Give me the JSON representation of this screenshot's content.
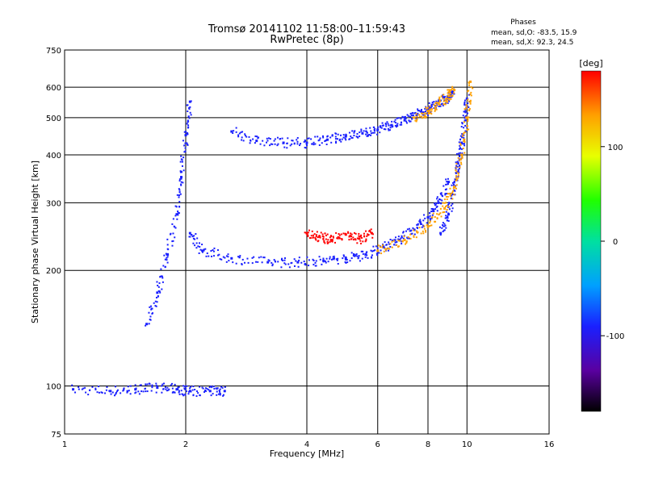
{
  "chart_data": {
    "type": "scatter",
    "title": "Tromsø 20141102 11:58:00–11:59:43",
    "subtitle": "RwPretec (8p)",
    "xlabel": "Frequency [MHz]",
    "ylabel": "Stationary phase Virtual Height [km]",
    "x_scale": "log",
    "y_scale": "log",
    "xlim": [
      1,
      16
    ],
    "ylim": [
      75,
      750
    ],
    "x_ticks": [
      1,
      2,
      4,
      6,
      8,
      10,
      16
    ],
    "x_tick_labels": [
      "1",
      "2",
      "4",
      "6",
      "8",
      "10",
      "16"
    ],
    "y_ticks": [
      75,
      100,
      200,
      300,
      400,
      500,
      600,
      750
    ],
    "y_tick_labels": [
      "75",
      "100",
      "200",
      "300",
      "400",
      "500",
      "600",
      "750"
    ],
    "grid": true,
    "phase_info": {
      "title": "Phases",
      "line_o": "mean, sd,O: -83.5, 15.9",
      "line_x": "mean, sd,X:  92.3, 24.5"
    },
    "colorbar": {
      "label": "[deg]",
      "range": [
        -180,
        180
      ],
      "ticks": [
        100,
        0,
        -100
      ],
      "tick_labels": [
        "100",
        "0",
        "-100"
      ]
    },
    "series": [
      {
        "traces": [
          {
            "x": [
              1.05,
              1.3,
              1.5,
              1.7,
              1.9,
              2.05,
              2.3,
              2.5
            ],
            "y": [
              98,
              97,
              98,
              99,
              98,
              97,
              97,
              97
            ],
            "phase": -100
          },
          {
            "x": [
              1.6,
              1.7,
              1.8,
              1.9,
              1.95,
              2.0,
              2.05
            ],
            "y": [
              145,
              175,
              220,
              280,
              350,
              450,
              550
            ],
            "phase": -105
          },
          {
            "x": [
              2.05,
              2.2,
              2.6,
              3.2,
              3.8,
              4.4,
              5.0,
              5.6,
              6.2,
              6.8,
              7.4,
              8.0,
              8.5,
              9.0
            ],
            "y": [
              250,
              225,
              215,
              210,
              210,
              212,
              215,
              220,
              230,
              240,
              255,
              275,
              300,
              340
            ],
            "phase": -100
          },
          {
            "x": [
              2.6,
              3.0,
              3.5,
              4.0,
              4.5,
              5.0,
              5.5,
              6.0,
              6.5,
              7.0,
              7.5,
              8.0,
              8.5,
              9.0,
              9.2
            ],
            "y": [
              460,
              435,
              430,
              430,
              438,
              447,
              455,
              465,
              478,
              492,
              508,
              526,
              545,
              565,
              580
            ],
            "phase": -90
          },
          {
            "x": [
              8.6,
              9.0,
              9.3,
              9.5,
              9.7,
              9.9,
              10.0
            ],
            "y": [
              250,
              280,
              330,
              380,
              430,
              500,
              560
            ],
            "phase": -95
          },
          {
            "x": [
              6.0,
              7.0,
              8.0,
              8.8,
              9.3,
              9.7,
              10.0,
              10.2
            ],
            "y": [
              225,
              240,
              260,
              290,
              330,
              400,
              500,
              620
            ],
            "phase": 100
          },
          {
            "x": [
              4.0,
              4.3,
              4.6,
              5.0,
              5.4,
              5.8
            ],
            "y": [
              250,
              245,
              240,
              248,
              242,
              250
            ],
            "phase": 150
          },
          {
            "x": [
              7.4,
              8.0,
              8.5,
              9.0,
              9.3
            ],
            "y": [
              500,
              520,
              545,
              570,
              590
            ],
            "phase": 100
          }
        ]
      }
    ]
  }
}
